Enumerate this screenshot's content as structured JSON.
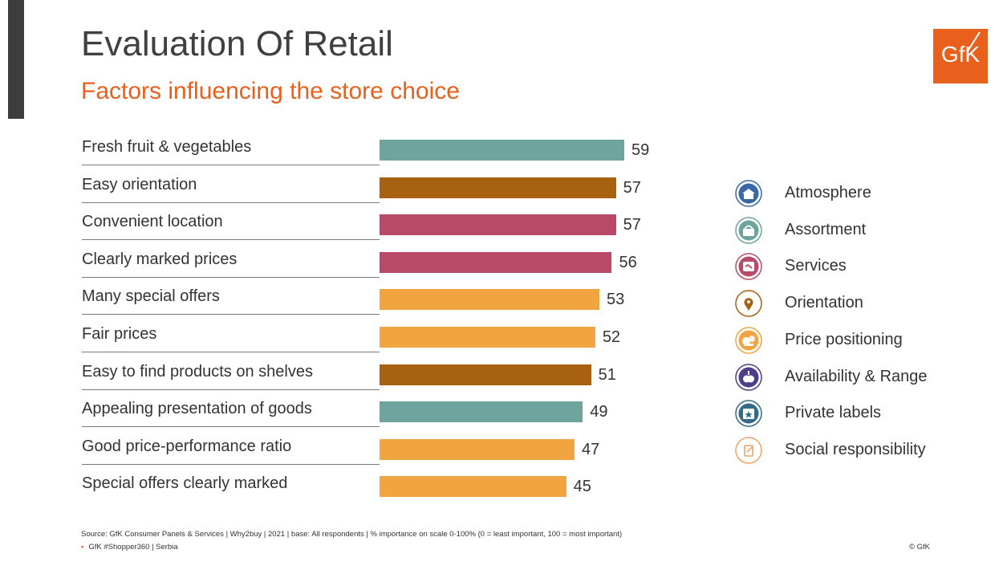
{
  "header": {
    "title": "Evaluation Of Retail",
    "subtitle": "Factors influencing the store choice",
    "logo": "GfK"
  },
  "colors": {
    "accent": "#e8601c",
    "Assortment": "#6fa39e",
    "Orientation": "#a8610f",
    "Services": "#b84a68",
    "Price positioning": "#f2a441",
    "Atmosphere": "#3a67a8",
    "Availability & Range": "#4e3d8a",
    "Private labels": "#336a88",
    "Social responsibility": "#f2a068"
  },
  "chart_data": {
    "type": "bar",
    "orientation": "horizontal",
    "categories": [
      "Fresh fruit & vegetables",
      "Easy orientation",
      "Convenient location",
      "Clearly marked prices",
      "Many special offers",
      "Fair prices",
      "Easy to find products on shelves",
      "Appealing presentation of goods",
      "Good price-performance ratio",
      "Special offers clearly marked"
    ],
    "values": [
      59,
      57,
      57,
      56,
      53,
      52,
      51,
      49,
      47,
      45
    ],
    "groups": [
      "Assortment",
      "Orientation",
      "Services",
      "Services",
      "Price positioning",
      "Price positioning",
      "Orientation",
      "Assortment",
      "Price positioning",
      "Price positioning"
    ],
    "xlim": [
      0,
      100
    ],
    "grid": false,
    "legend_position": "right"
  },
  "legend": [
    {
      "label": "Atmosphere",
      "icon": "store-icon"
    },
    {
      "label": "Assortment",
      "icon": "basket-icon"
    },
    {
      "label": "Services",
      "icon": "handshake-icon"
    },
    {
      "label": "Orientation",
      "icon": "location-pin-icon"
    },
    {
      "label": "Price positioning",
      "icon": "coins-icon"
    },
    {
      "label": "Availability & Range",
      "icon": "apple-icon"
    },
    {
      "label": "Private labels",
      "icon": "star-box-icon"
    },
    {
      "label": "Social responsibility",
      "icon": "document-pen-icon"
    }
  ],
  "footer": {
    "source": "Source: GfK Consumer Panels & Services | Why2buy | 2021 | base: All respondents | % importance on scale 0-100% (0 = least important, 100 = most important)",
    "tag": "GfK #Shopper360 | Serbia",
    "copyright": "© GfK"
  }
}
